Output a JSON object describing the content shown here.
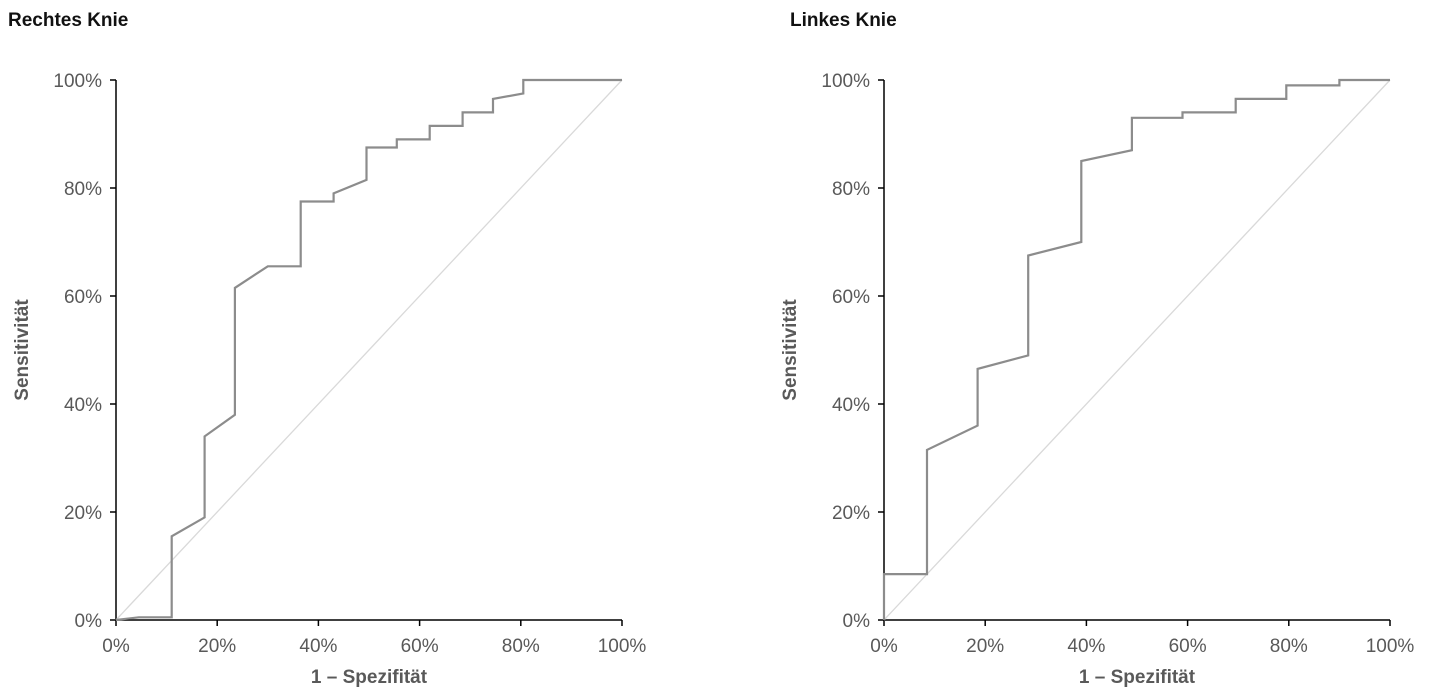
{
  "chart_data": [
    {
      "type": "line",
      "title": "Rechtes Knie",
      "xlabel": "1 – Spezifität",
      "ylabel": "Sensitivität",
      "xlim": [
        0,
        100
      ],
      "ylim": [
        0,
        100
      ],
      "x_ticks": [
        "0%",
        "20%",
        "40%",
        "60%",
        "80%",
        "100%"
      ],
      "y_ticks": [
        "0%",
        "20%",
        "40%",
        "60%",
        "80%",
        "100%"
      ],
      "grid": false,
      "series": [
        {
          "color": "#8c8c8c",
          "x": [
            0,
            4.5,
            11,
            11,
            17.5,
            17.5,
            23.5,
            23.5,
            30,
            36.5,
            36.5,
            43,
            43,
            49.5,
            49.5,
            55.5,
            55.5,
            62,
            62,
            68.5,
            68.5,
            74.5,
            74.5,
            80.5,
            80.5,
            100
          ],
          "y": [
            0,
            0.5,
            0.5,
            15.5,
            19,
            34,
            38,
            61.5,
            65.5,
            65.5,
            77.5,
            77.5,
            79,
            81.5,
            87.5,
            87.5,
            89,
            89,
            91.5,
            91.5,
            94,
            94,
            96.5,
            97.5,
            100,
            100
          ]
        },
        {
          "color": "#d9d9d9",
          "x": [
            0,
            100
          ],
          "y": [
            0,
            100
          ]
        }
      ]
    },
    {
      "type": "line",
      "title": "Linkes Knie",
      "xlabel": "1 – Spezifität",
      "ylabel": "Sensitivität",
      "xlim": [
        0,
        100
      ],
      "ylim": [
        0,
        100
      ],
      "x_ticks": [
        "0%",
        "20%",
        "40%",
        "60%",
        "80%",
        "100%"
      ],
      "y_ticks": [
        "0%",
        "20%",
        "40%",
        "60%",
        "80%",
        "100%"
      ],
      "grid": false,
      "series": [
        {
          "color": "#8c8c8c",
          "x": [
            0,
            0,
            8.5,
            8.5,
            18.5,
            18.5,
            28.5,
            28.5,
            39,
            39,
            49,
            49,
            59,
            59,
            69.5,
            69.5,
            79.5,
            79.5,
            90,
            90,
            100
          ],
          "y": [
            0,
            8.5,
            8.5,
            31.5,
            36,
            46.5,
            49,
            67.5,
            70,
            85,
            87,
            93,
            93,
            94,
            94,
            96.5,
            96.5,
            99,
            99,
            100,
            100
          ]
        },
        {
          "color": "#d9d9d9",
          "x": [
            0,
            100
          ],
          "y": [
            0,
            100
          ]
        }
      ]
    }
  ]
}
